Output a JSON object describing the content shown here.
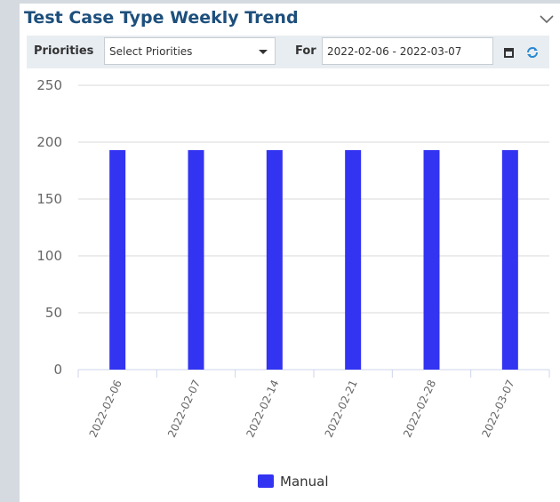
{
  "header": {
    "title": "Test Case Type Weekly Trend"
  },
  "filters": {
    "priorities_label": "Priorities",
    "priorities_placeholder": "Select Priorities",
    "for_label": "For",
    "date_range": "2022-02-06 - 2022-03-07"
  },
  "chart_data": {
    "type": "bar",
    "categories": [
      "2022-02-06",
      "2022-02-07",
      "2022-02-14",
      "2022-02-21",
      "2022-02-28",
      "2022-03-07"
    ],
    "series": [
      {
        "name": "Manual",
        "color": "#3333f2",
        "values": [
          193,
          193,
          193,
          193,
          193,
          193
        ]
      }
    ],
    "ylim": [
      0,
      250
    ],
    "yticks": [
      0,
      50,
      100,
      150,
      200,
      250
    ],
    "grid": true,
    "legend": "bottom"
  }
}
